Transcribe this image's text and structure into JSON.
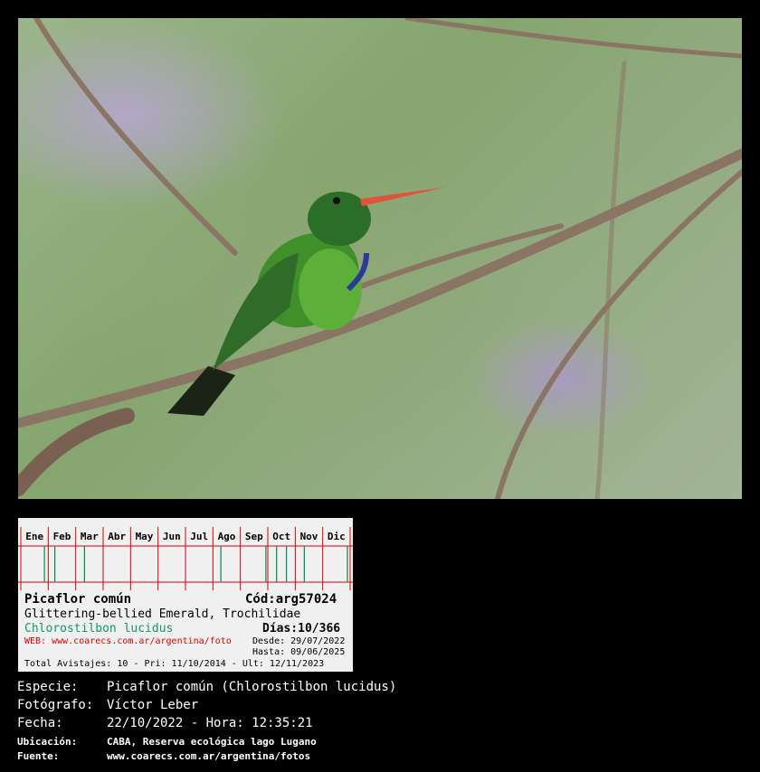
{
  "photo": {
    "subject": "hummingbird perched on branch"
  },
  "card": {
    "months": [
      "Ene",
      "Feb",
      "Mar",
      "Abr",
      "May",
      "Jun",
      "Jul",
      "Ago",
      "Sep",
      "Oct",
      "Nov",
      "Dic"
    ],
    "sightings": [
      {
        "month": 1,
        "fraction": 0.86
      },
      {
        "month": 2,
        "fraction": 0.24
      },
      {
        "month": 3,
        "fraction": 0.32
      },
      {
        "month": 8,
        "fraction": 0.29
      },
      {
        "month": 9,
        "fraction": 0.93
      },
      {
        "month": 10,
        "fraction": 0.32
      },
      {
        "month": 10,
        "fraction": 0.68
      },
      {
        "month": 11,
        "fraction": 0.33
      },
      {
        "month": 12,
        "fraction": 0.9
      }
    ],
    "common_name": "Picaflor común",
    "code": "Cód:arg57024",
    "english_name": "Glittering-bellied Emerald, Trochilidae",
    "days": "Días:10/366",
    "scientific_name": "Chlorostilbon lucidus",
    "desde": "Desde: 29/07/2022",
    "web": "WEB: www.coarecs.com.ar/argentina/foto",
    "hasta": "Hasta: 09/06/2025",
    "totals": "Total Avistajes: 10 - Pri: 11/10/2014 - Ult: 12/11/2023",
    "colors": {
      "grid": "#dd0000",
      "sighting": "#008855",
      "scientific": "#119966",
      "web": "#dd0000"
    }
  },
  "info": {
    "especie_label": "Especie:",
    "especie": "Picaflor común (Chlorostilbon lucidus)",
    "fotografo_label": "Fotógrafo:",
    "fotografo": "Víctor Leber",
    "fecha_label": "Fecha:",
    "fecha": "22/10/2022 - Hora: 12:35:21",
    "ubicacion_label": "Ubicación:",
    "ubicacion": "CABA, Reserva ecológica lago Lugano",
    "fuente_label": "Fuente:",
    "fuente": "www.coarecs.com.ar/argentina/fotos"
  }
}
